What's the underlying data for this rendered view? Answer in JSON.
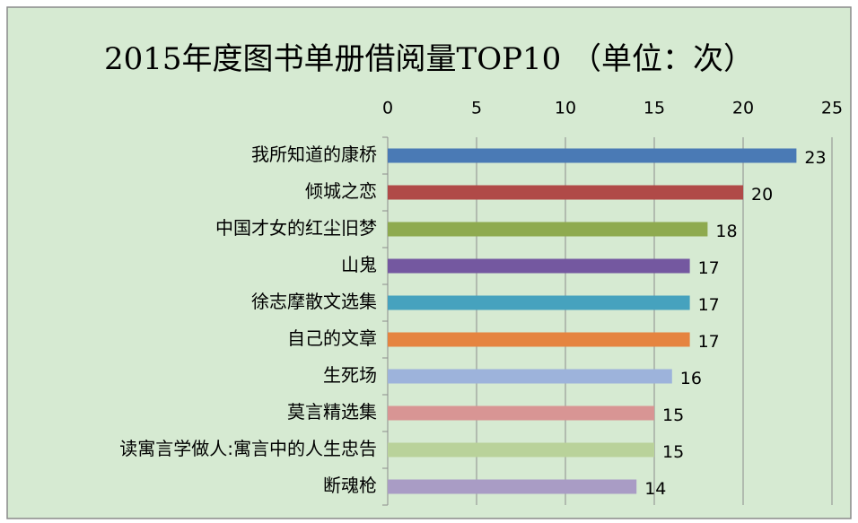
{
  "chart_data": {
    "type": "bar",
    "title": "2015年度图书单册借阅量TOP10 （单位：次）",
    "categories": [
      "我所知道的康桥",
      "倾城之恋",
      "中国才女的红尘旧梦",
      "山鬼",
      "徐志摩散文选集",
      "自己的文章",
      "生死场",
      "莫言精选集",
      "读寓言学做人:寓言中的人生忠告",
      "断魂枪"
    ],
    "values": [
      23,
      20,
      18,
      17,
      17,
      17,
      16,
      15,
      15,
      14
    ],
    "colors": [
      "#4a7ab5",
      "#b04a48",
      "#8eaa4f",
      "#7458a0",
      "#46a2be",
      "#e58440",
      "#9db3db",
      "#d89594",
      "#b9d29a",
      "#a99cc5"
    ],
    "xlim": [
      0,
      25
    ],
    "xticks": [
      0,
      5,
      10,
      15,
      20,
      25
    ],
    "grid": true
  }
}
